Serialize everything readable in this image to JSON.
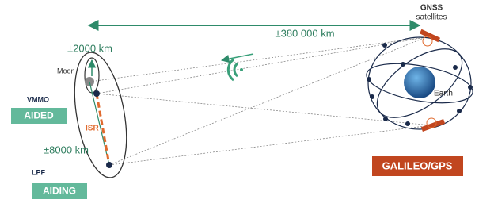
{
  "distance": {
    "label": "±380 000 km"
  },
  "gnss": {
    "title": "GNSS",
    "subtitle": "satellites"
  },
  "moon_system": {
    "orbit_label": "±2000 km",
    "moon": "Moon",
    "vmmo": "VMMO",
    "aided": "AIDED",
    "isr": "ISR",
    "far_label": "±8000 km",
    "lpf": "LPF",
    "aiding": "AIDING"
  },
  "earth_system": {
    "earth": "Earth",
    "constellation": "GALILEO/GPS"
  }
}
